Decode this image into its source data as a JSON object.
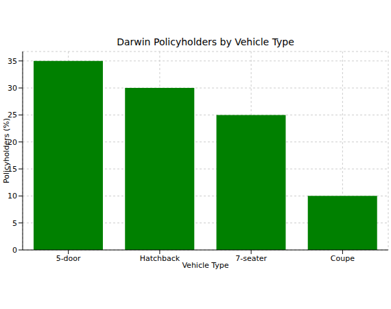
{
  "chart_data": {
    "type": "bar",
    "title": "Darwin Policyholders by Vehicle Type",
    "x_label": "Vehicle Type",
    "y_label": "Policyholders (%)",
    "categories": [
      "5-door",
      "Hatchback",
      "7-seater",
      "Coupe"
    ],
    "values": [
      35,
      30,
      25,
      10
    ],
    "color": "#008000",
    "ylim": [
      0,
      36.75
    ],
    "yticks": [
      0,
      5,
      10,
      15,
      20,
      25,
      30,
      35
    ],
    "grid": true
  }
}
